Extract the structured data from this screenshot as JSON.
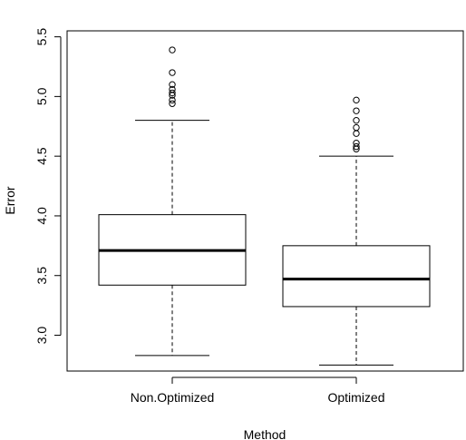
{
  "chart_data": {
    "type": "box",
    "title": "",
    "xlabel": "Method",
    "ylabel": "Error",
    "ylim": [
      2.7,
      5.55
    ],
    "yticks": [
      "3.0",
      "3.5",
      "4.0",
      "4.5",
      "5.0",
      "5.5"
    ],
    "grid": false,
    "legend": "none",
    "categories": [
      "Non.Optimized",
      "Optimized"
    ],
    "boxes": [
      {
        "name": "Non.Optimized",
        "whisker_low": 2.83,
        "q1": 3.42,
        "median": 3.71,
        "q3": 4.01,
        "whisker_high": 4.8,
        "outliers": [
          4.94,
          4.97,
          5.01,
          5.03,
          5.06,
          5.1,
          5.2,
          5.39
        ]
      },
      {
        "name": "Optimized",
        "whisker_low": 2.75,
        "q1": 3.24,
        "median": 3.47,
        "q3": 3.75,
        "whisker_high": 4.5,
        "outliers": [
          4.56,
          4.58,
          4.61,
          4.69,
          4.74,
          4.8,
          4.88,
          4.97
        ]
      }
    ]
  }
}
